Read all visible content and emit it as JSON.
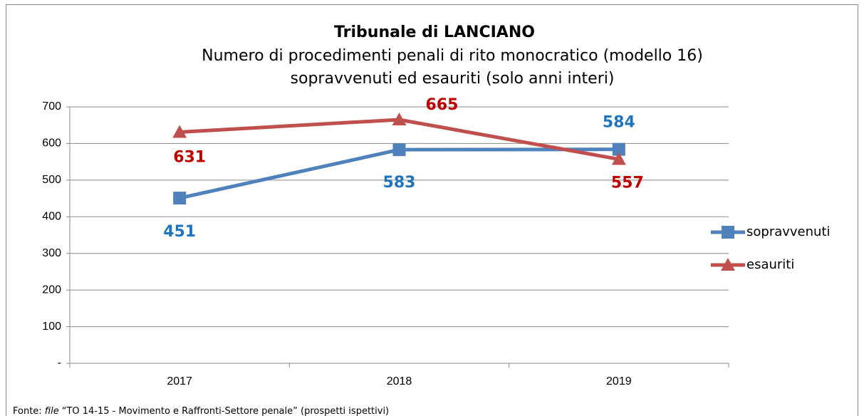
{
  "chart_data": {
    "type": "line",
    "title": "Tribunale di LANCIANO",
    "subtitle": [
      "Numero di procedimenti penali di rito monocratico (modello 16)",
      "sopravvenuti ed esauriti (solo anni interi)"
    ],
    "categories": [
      "2017",
      "2018",
      "2019"
    ],
    "series": [
      {
        "name": "sopravvenuti",
        "color": "#4f81bd",
        "label_color": "#1f74bf",
        "marker": "square",
        "values": [
          451,
          583,
          584
        ]
      },
      {
        "name": "esauriti",
        "color": "#c0504d",
        "label_color": "#c00000",
        "marker": "triangle",
        "values": [
          631,
          665,
          557
        ]
      }
    ],
    "ylim": [
      0,
      700
    ],
    "yticks": [
      {
        "value": 0,
        "label": "-"
      },
      100,
      200,
      300,
      400,
      500,
      600,
      700
    ],
    "grid": true,
    "legend": "right",
    "source": {
      "prefix": "Fonte:",
      "file": "file",
      "text": "“TO 14-15 - Movimento e Raffronti-Settore penale” (prospetti ispettivi)"
    }
  }
}
